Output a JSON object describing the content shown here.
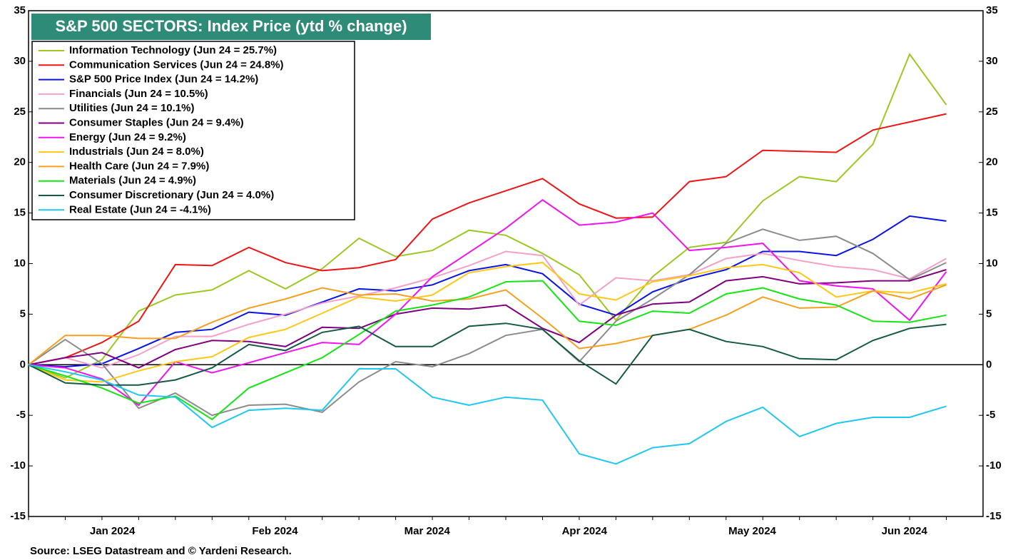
{
  "chart_data": {
    "type": "line",
    "title": "S&P 500 SECTORS: Index Price (ytd % change)",
    "source": "Source: LSEG Datastream and © Yardeni Research.",
    "x": [
      -2,
      5,
      12,
      19,
      26,
      33,
      40,
      47,
      54,
      61,
      68,
      75,
      82,
      89,
      96,
      103,
      110,
      117,
      124,
      131,
      138,
      145,
      152,
      159,
      166,
      173
    ],
    "xlim": [
      -2,
      180
    ],
    "xticks": [
      {
        "value": 14,
        "label": "Jan 2024"
      },
      {
        "value": 45,
        "label": "Feb 2024"
      },
      {
        "value": 74,
        "label": "Mar 2024"
      },
      {
        "value": 104,
        "label": "Apr 2024"
      },
      {
        "value": 136,
        "label": "May 2024"
      },
      {
        "value": 165,
        "label": "Jun 2024"
      }
    ],
    "ylim": [
      -15,
      35
    ],
    "yticks": [
      -15,
      -10,
      -5,
      0,
      5,
      10,
      15,
      20,
      25,
      30,
      35
    ],
    "grid": false,
    "legend": "upper left",
    "series": [
      {
        "name": "Information Technology (Jun 24 = 25.7%)",
        "color": "#9cc822",
        "values": [
          0,
          -1.3,
          0.5,
          5.3,
          6.9,
          7.4,
          9.3,
          7.5,
          9.5,
          12.5,
          10.7,
          11.3,
          13.3,
          12.8,
          11.0,
          8.9,
          4.4,
          8.7,
          11.6,
          12.1,
          16.2,
          18.6,
          18.1,
          21.8,
          30.7,
          25.7
        ]
      },
      {
        "name": "Communication Services (Jun 24 = 24.8%)",
        "color": "#f01414",
        "values": [
          0,
          0.7,
          2.2,
          4.3,
          9.9,
          9.8,
          11.6,
          10.1,
          9.3,
          9.6,
          10.4,
          14.4,
          16.0,
          17.2,
          18.4,
          15.9,
          14.5,
          14.6,
          18.1,
          18.6,
          21.2,
          21.1,
          21.0,
          23.2,
          24.0,
          24.8
        ]
      },
      {
        "name": "S&P 500 Price Index (Jun 24 = 14.2%)",
        "color": "#0a14e6",
        "values": [
          0,
          -0.2,
          0.1,
          1.6,
          3.2,
          3.5,
          5.2,
          4.9,
          6.2,
          7.5,
          7.3,
          7.9,
          9.3,
          9.9,
          9.0,
          6.0,
          4.9,
          7.2,
          8.5,
          9.4,
          11.2,
          11.2,
          10.8,
          12.4,
          14.7,
          14.2
        ]
      },
      {
        "name": "Financials (Jun 24 = 10.5%)",
        "color": "#f5a0c8",
        "values": [
          0,
          0.7,
          -0.3,
          1.0,
          2.8,
          2.8,
          4.0,
          5.0,
          6.1,
          6.8,
          7.6,
          8.6,
          9.8,
          11.2,
          10.8,
          5.9,
          8.6,
          8.3,
          8.9,
          10.5,
          11.0,
          10.3,
          9.7,
          9.4,
          8.5,
          10.5
        ]
      },
      {
        "name": "Utilities (Jun 24 = 10.1%)",
        "color": "#8c8c8c",
        "values": [
          0,
          2.5,
          0.1,
          -4.3,
          -2.8,
          -5.0,
          -4.0,
          -3.9,
          -4.7,
          -1.7,
          0.3,
          -0.2,
          1.1,
          2.9,
          3.5,
          0.3,
          4.3,
          6.5,
          8.9,
          12.0,
          13.4,
          12.3,
          12.7,
          11.0,
          8.4,
          10.1
        ]
      },
      {
        "name": "Consumer Staples (Jun 24 = 9.4%)",
        "color": "#800080",
        "values": [
          0,
          0.7,
          1.2,
          -0.3,
          1.5,
          2.4,
          2.3,
          1.8,
          3.7,
          3.6,
          5.0,
          5.6,
          5.5,
          5.9,
          3.6,
          2.2,
          4.9,
          6.0,
          6.2,
          8.3,
          8.7,
          8.0,
          8.1,
          8.3,
          8.3,
          9.4
        ]
      },
      {
        "name": "Energy (Jun 24 = 9.2%)",
        "color": "#f014f0",
        "values": [
          0,
          -0.3,
          -1.4,
          -4.0,
          0.3,
          -0.8,
          0.2,
          1.2,
          2.2,
          2.0,
          5.0,
          8.7,
          11.1,
          13.5,
          16.3,
          13.8,
          14.1,
          15.0,
          11.3,
          11.6,
          12.0,
          8.3,
          7.8,
          7.5,
          4.4,
          9.2
        ]
      },
      {
        "name": "Industrials (Jun 24 = 8.0%)",
        "color": "#ffc814",
        "values": [
          0,
          -1.5,
          -1.7,
          -0.6,
          0.3,
          0.8,
          2.7,
          3.5,
          5.1,
          6.7,
          6.3,
          6.9,
          9.1,
          9.7,
          10.1,
          7.0,
          6.4,
          8.2,
          8.8,
          9.6,
          9.9,
          9.1,
          6.7,
          7.3,
          7.1,
          8.0
        ]
      },
      {
        "name": "Health Care (Jun 24 = 7.9%)",
        "color": "#f5a01e",
        "values": [
          0,
          2.9,
          2.9,
          2.6,
          2.6,
          4.2,
          5.6,
          6.5,
          7.6,
          6.9,
          7.0,
          6.3,
          6.5,
          7.4,
          4.6,
          1.6,
          2.1,
          2.9,
          3.5,
          4.9,
          6.7,
          5.6,
          5.7,
          7.3,
          6.5,
          7.9
        ]
      },
      {
        "name": "Materials (Jun 24 = 4.9%)",
        "color": "#14e614",
        "values": [
          0,
          -1.1,
          -2.3,
          -3.8,
          -3.1,
          -5.4,
          -2.3,
          -0.8,
          0.7,
          3.0,
          5.3,
          5.9,
          6.7,
          8.2,
          8.3,
          4.3,
          3.9,
          5.3,
          5.1,
          7.0,
          7.6,
          6.5,
          5.9,
          4.3,
          4.2,
          4.9
        ]
      },
      {
        "name": "Consumer Discretionary (Jun 24 = 4.0%)",
        "color": "#145a46",
        "values": [
          0,
          -1.8,
          -2.0,
          -2.0,
          -1.5,
          -0.3,
          2.0,
          1.4,
          3.2,
          3.8,
          1.8,
          1.8,
          3.8,
          4.1,
          3.5,
          0.4,
          -1.9,
          2.9,
          3.5,
          2.3,
          1.8,
          0.6,
          0.5,
          2.4,
          3.6,
          4.0
        ]
      },
      {
        "name": "Real Estate (Jun 24 = -4.1%)",
        "color": "#1ec8f0",
        "values": [
          0,
          -0.7,
          -1.5,
          -3.0,
          -3.2,
          -6.2,
          -4.5,
          -4.3,
          -4.5,
          -0.4,
          -0.4,
          -3.2,
          -4.0,
          -3.2,
          -3.5,
          -8.8,
          -9.8,
          -8.2,
          -7.8,
          -5.6,
          -4.2,
          -7.1,
          -5.8,
          -5.2,
          -5.2,
          -4.1
        ]
      }
    ]
  }
}
